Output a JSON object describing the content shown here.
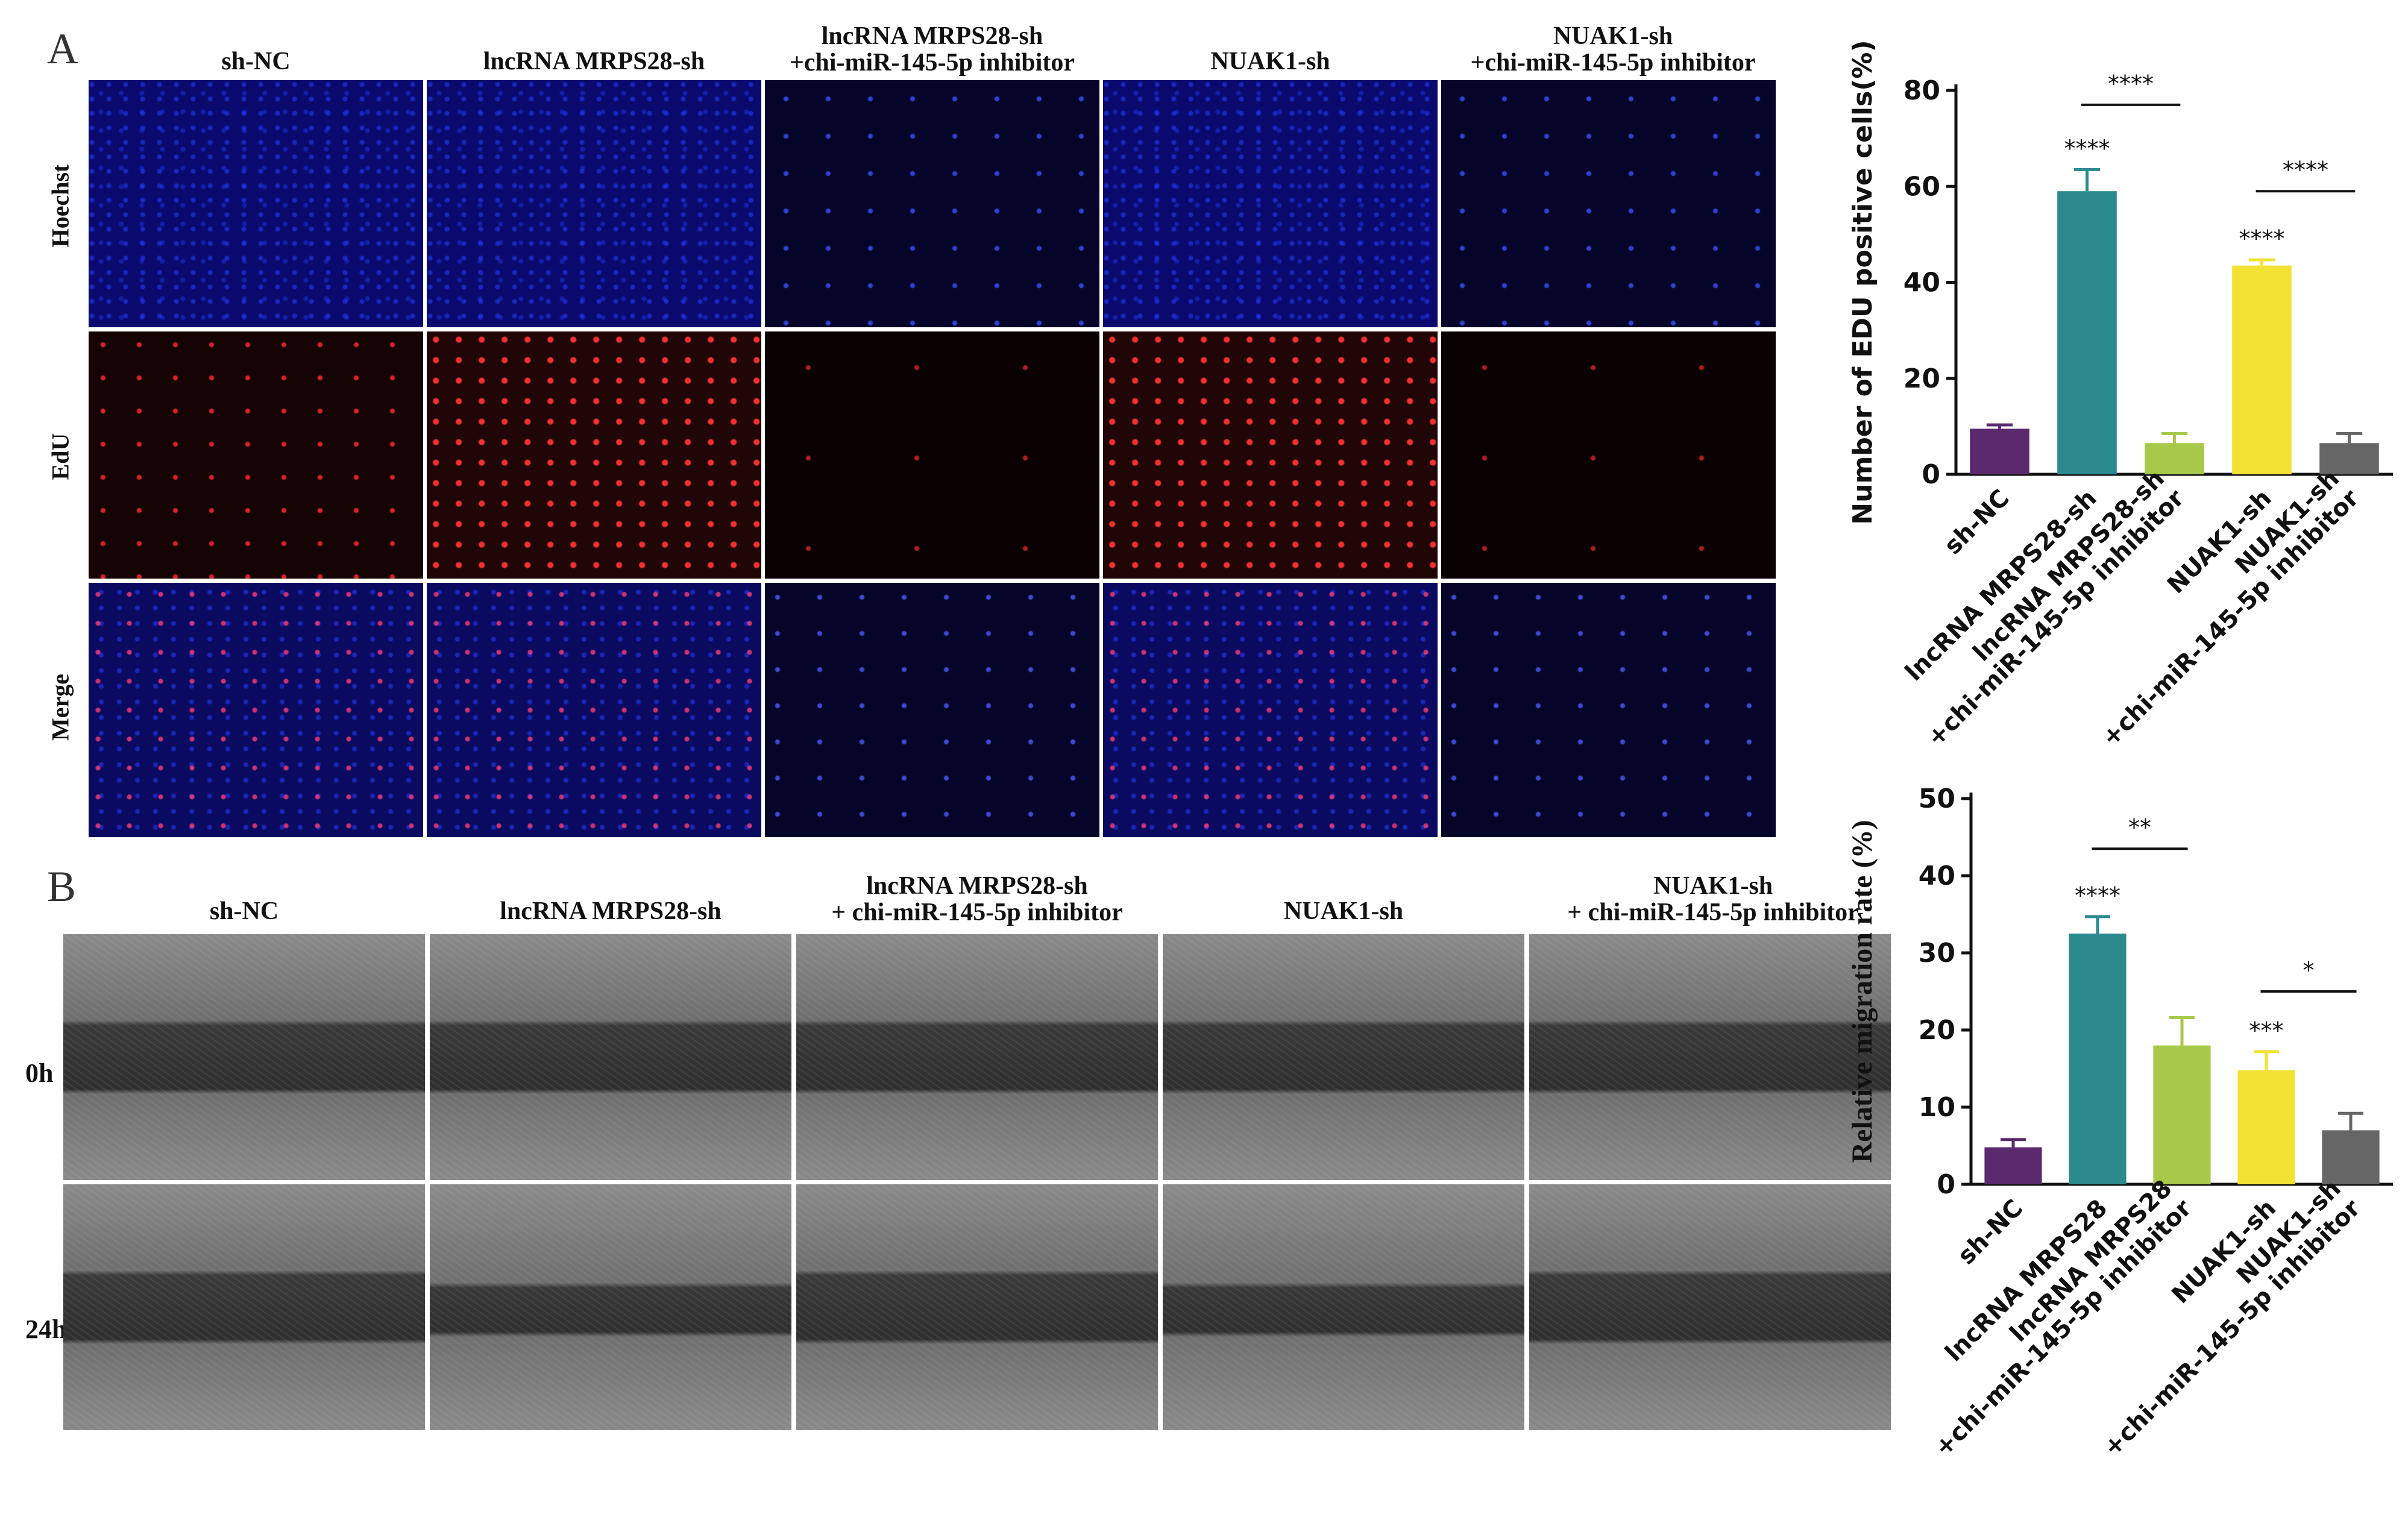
{
  "panel_a": {
    "letter": "A",
    "columns": [
      "sh-NC",
      "lncRNA MRPS28-sh",
      "lncRNA MRPS28-sh\n+chi-miR-145-5p inhibitor",
      "NUAK1-sh",
      "NUAK1-sh\n+chi-miR-145-5p inhibitor"
    ],
    "rows": [
      "Hoechst",
      "EdU",
      "Merge"
    ]
  },
  "panel_b": {
    "letter": "B",
    "columns": [
      "sh-NC",
      "lncRNA MRPS28-sh",
      "lncRNA MRPS28-sh\n+ chi-miR-145-5p inhibitor",
      "NUAK1-sh",
      "NUAK1-sh\n+ chi-miR-145-5p inhibitor"
    ],
    "rows": [
      "0h",
      "24h"
    ]
  },
  "chart_data": [
    {
      "type": "bar",
      "ylabel": "Number of EDU positive cells(%)",
      "categories": [
        "sh-NC",
        "lncRNA MRPS28-sh",
        "lncRNA MRPS28-sh\n+chi-miR-145-5p inhibitor",
        "NUAK1-sh",
        "NUAK1-sh\n+chi-miR-145-5p inhibitor"
      ],
      "values": [
        9.5,
        59,
        6.5,
        43.5,
        6.5
      ],
      "errors": [
        0.8,
        4.5,
        2.0,
        1.2,
        2.0
      ],
      "colors": [
        "#5b2a6e",
        "#2a8a8e",
        "#a8c84a",
        "#f2e234",
        "#666666"
      ],
      "ylim": [
        0,
        80
      ],
      "yticks": [
        0,
        20,
        40,
        60,
        80
      ],
      "bar_labels": [
        "",
        "****",
        "",
        "****",
        ""
      ],
      "comparisons": [
        {
          "from": 1,
          "to": 2,
          "label": "****",
          "y": 77
        },
        {
          "from": 3,
          "to": 4,
          "label": "****",
          "y": 59
        }
      ]
    },
    {
      "type": "bar",
      "ylabel": "Relative migration rate (%)",
      "categories": [
        "sh-NC",
        "lncRNA MRPS28",
        "lncRNA MRPS28\n+chi-miR-145-5p inhibitor",
        "NUAK1-sh",
        "NUAK1-sh\n+chi-miR-145-5p inhibitor"
      ],
      "values": [
        4.8,
        32.5,
        18,
        14.8,
        7
      ],
      "errors": [
        1.0,
        2.2,
        3.6,
        2.4,
        2.2
      ],
      "colors": [
        "#5b2a6e",
        "#2a8a8e",
        "#a8c84a",
        "#f2e234",
        "#666666"
      ],
      "ylim": [
        0,
        50
      ],
      "yticks": [
        0,
        10,
        20,
        30,
        40,
        50
      ],
      "bar_labels": [
        "",
        "****",
        "",
        "***",
        ""
      ],
      "comparisons": [
        {
          "from": 1,
          "to": 2,
          "label": "**",
          "y": 43.5
        },
        {
          "from": 3,
          "to": 4,
          "label": "*",
          "y": 25
        }
      ]
    }
  ]
}
